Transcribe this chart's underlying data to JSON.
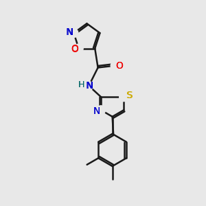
{
  "background_color": "#e8e8e8",
  "bond_color": "#1a1a1a",
  "bond_width": 1.8,
  "atom_colors": {
    "N": "#0000cc",
    "O": "#ee0000",
    "S": "#ccaa00",
    "H": "#006666",
    "C": "#1a1a1a"
  },
  "font_size": 10,
  "figsize": [
    3.0,
    3.0
  ],
  "dpi": 100
}
